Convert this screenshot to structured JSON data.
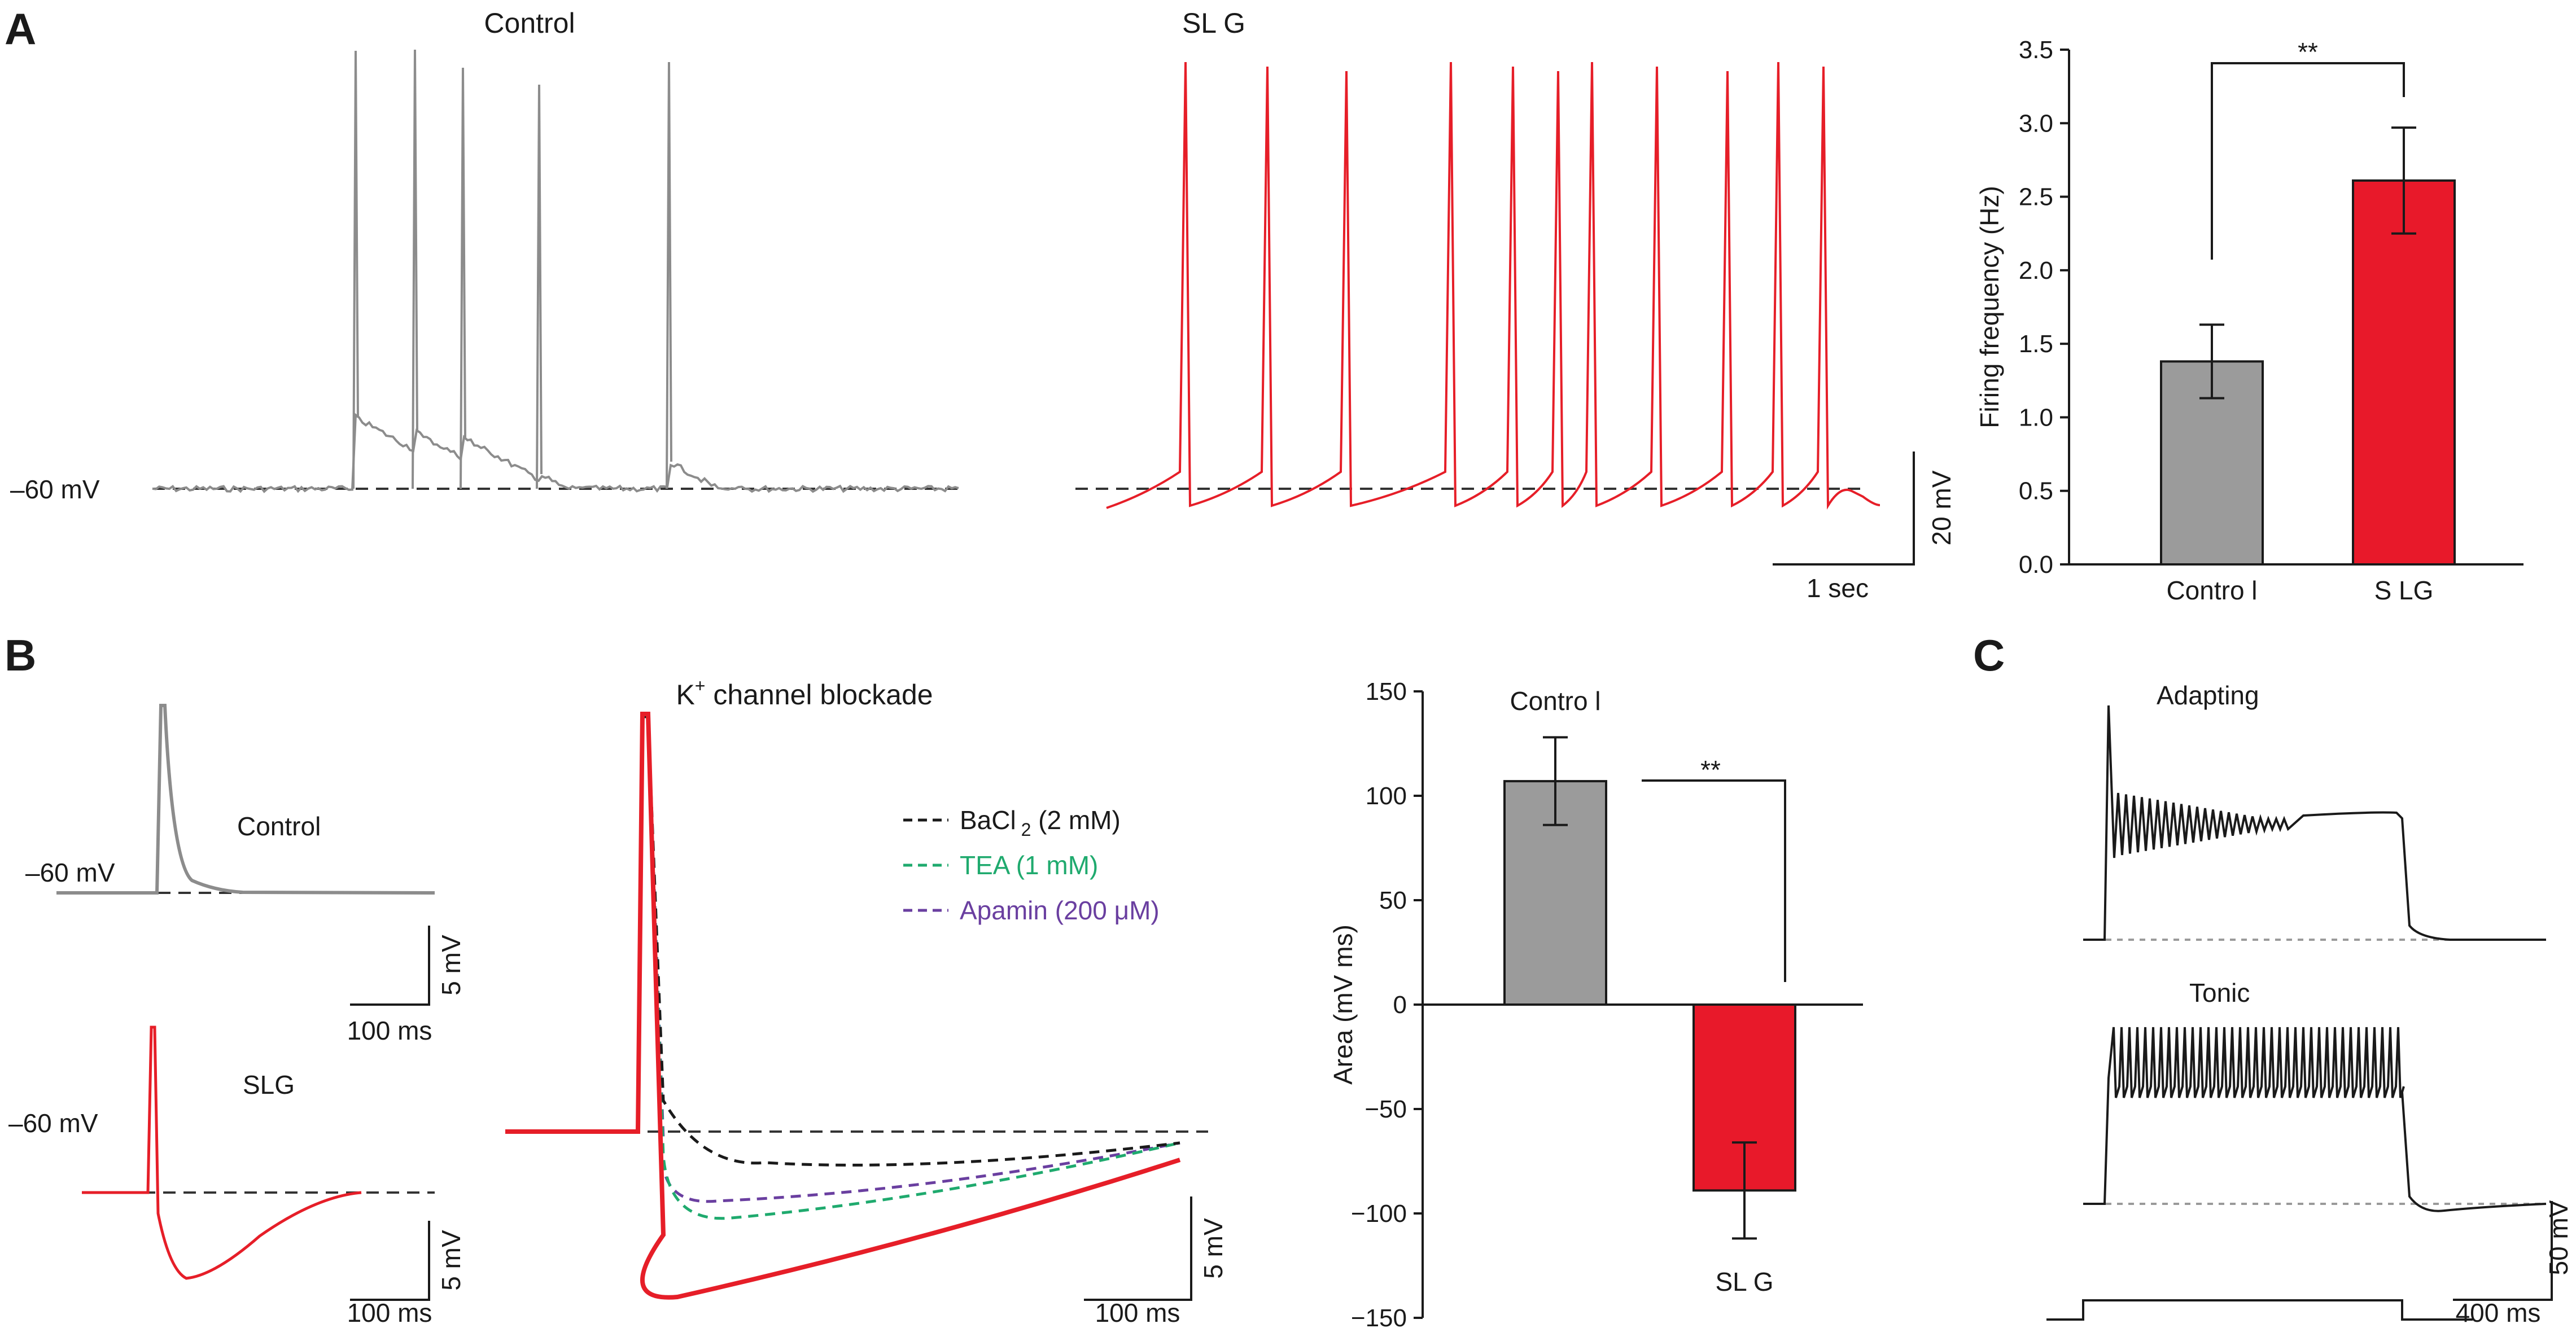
{
  "colors": {
    "control": "#8c8c8c",
    "slg": "#e61e28",
    "bacl2": "#1a1a1a",
    "tea": "#1faa6e",
    "apamin": "#6a3fa0",
    "black": "#1a1a1a"
  },
  "panels": {
    "a": "A",
    "b": "B",
    "c": "C"
  },
  "panel_a": {
    "trace_control_title": "Control",
    "trace_slg_title": "SL G",
    "baseline_label": "–60 mV",
    "scale_y": "20 mV",
    "scale_x": "1 sec"
  },
  "panel_b": {
    "control_label": "Control",
    "control_baseline": "–60 mV",
    "slg_label": "SLG",
    "slg_baseline": "–60 mV",
    "scale1_y": "5 mV",
    "scale1_x": "100 ms",
    "scale2_y": "5 mV",
    "scale2_x": "100 ms",
    "k_title_main": "K",
    "k_title_sup": "+",
    "k_title_rest": " channel blockade",
    "legend": [
      {
        "name": "BaCl",
        "sub": "2",
        "rest": " (2 mM)",
        "color": "#1a1a1a"
      },
      {
        "name": "TEA (1 mM)",
        "sub": "",
        "rest": "",
        "color": "#1faa6e"
      },
      {
        "name": "Apamin (200  μM)",
        "sub": "",
        "rest": "",
        "color": "#6a3fa0"
      }
    ],
    "scale3_y": "5 mV",
    "scale3_x": "100 ms"
  },
  "panel_c": {
    "adapting_label": "Adapting",
    "tonic_label": "Tonic",
    "scale_y": "50 mV",
    "scale_x": "400 ms"
  },
  "chart_data": [
    {
      "type": "bar",
      "title": "",
      "categories": [
        "Control",
        "SLG"
      ],
      "category_labels": [
        "Contro l",
        "S LG"
      ],
      "values": [
        1.38,
        2.61
      ],
      "errors": [
        0.25,
        0.36
      ],
      "ylabel": "Firing frequency (Hz)",
      "xlabel": "",
      "ylim": [
        0,
        3.5
      ],
      "yticks": [
        "0.0",
        "0.5",
        "1.0",
        "1.5",
        "2.0",
        "2.5",
        "3.0",
        "3.5"
      ],
      "significance": "**",
      "colors": [
        "#9b9b9b",
        "#e8192a"
      ]
    },
    {
      "type": "bar",
      "title": "",
      "categories": [
        "Control",
        "SLG"
      ],
      "category_labels": [
        "Contro l",
        "SL G"
      ],
      "values": [
        107,
        -89
      ],
      "errors": [
        21,
        23
      ],
      "ylabel": "Area (mV ms)",
      "xlabel": "",
      "ylim": [
        -150,
        150
      ],
      "yticks": [
        "150",
        "100",
        "50",
        "0",
        "−50",
        "−100",
        "−150"
      ],
      "significance": "**",
      "colors": [
        "#9b9b9b",
        "#e8192a"
      ]
    }
  ]
}
